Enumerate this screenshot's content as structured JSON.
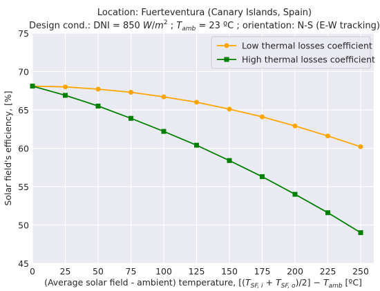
{
  "chart_data": {
    "type": "line",
    "title_line1": "Location: Fuerteventura (Canary Islands, Spain)",
    "title_line2": "Design cond.: DNI = 850 W/m² ; Tamb = 23 ºC ; orientation: N-S (E-W tracking)",
    "xlabel": "(Average solar field - ambient) temperature, [(TSF,i + TSF,o)/2] − Tamb [ºC]",
    "ylabel": "Solar field's efficiency, [%]",
    "x": [
      0,
      25,
      50,
      75,
      100,
      125,
      150,
      175,
      200,
      225,
      250
    ],
    "xlim": [
      0,
      260
    ],
    "ylim": [
      45,
      75
    ],
    "xticks": [
      0,
      25,
      50,
      75,
      100,
      125,
      150,
      175,
      200,
      225,
      250
    ],
    "yticks": [
      45,
      50,
      55,
      60,
      65,
      70,
      75
    ],
    "grid": true,
    "legend_position": "top-right",
    "series": [
      {
        "name": "Low thermal losses coefficient",
        "color": "#FFA500",
        "marker": "circle",
        "values": [
          68.1,
          68.0,
          67.7,
          67.3,
          66.7,
          66.0,
          65.1,
          64.1,
          62.9,
          61.6,
          60.2
        ]
      },
      {
        "name": "High thermal losses coefficient",
        "color": "#008000",
        "marker": "square",
        "values": [
          68.1,
          66.9,
          65.5,
          63.9,
          62.2,
          60.4,
          58.4,
          56.3,
          54.0,
          51.6,
          49.0
        ]
      }
    ]
  },
  "style": {
    "plot_background": "#EAEAF2",
    "grid_color": "#FFFFFF"
  }
}
